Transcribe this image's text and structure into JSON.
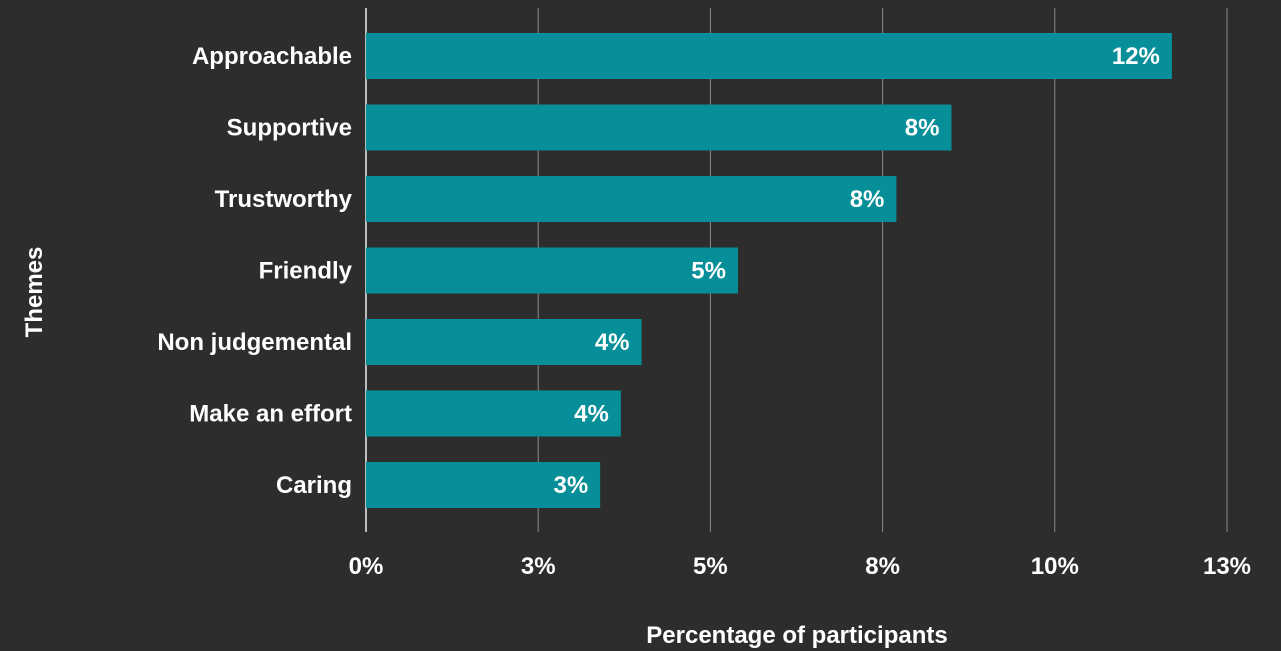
{
  "chart_data": {
    "type": "bar",
    "orientation": "horizontal",
    "categories": [
      "Approachable",
      "Supportive",
      "Trustworthy",
      "Friendly",
      "Non judgemental",
      "Make an effort",
      "Caring"
    ],
    "values": [
      11.7,
      8.5,
      7.7,
      5.4,
      4.0,
      3.7,
      3.4
    ],
    "data_labels": [
      "12%",
      "8%",
      "8%",
      "5%",
      "4%",
      "4%",
      "3%"
    ],
    "xlabel": "Percentage of participants",
    "ylabel": "Themes",
    "xlim": [
      0,
      12.5
    ],
    "x_ticks": [
      0,
      2.5,
      5,
      7.5,
      10,
      12.5
    ],
    "x_tick_labels": [
      "0%",
      "3%",
      "5%",
      "8%",
      "10%",
      "13%"
    ],
    "grid": "vertical",
    "legend": "none",
    "colors": {
      "bar": "#068f98",
      "background": "#2d2d2d",
      "grid": "#8a8a8a",
      "text": "#ffffff"
    }
  }
}
